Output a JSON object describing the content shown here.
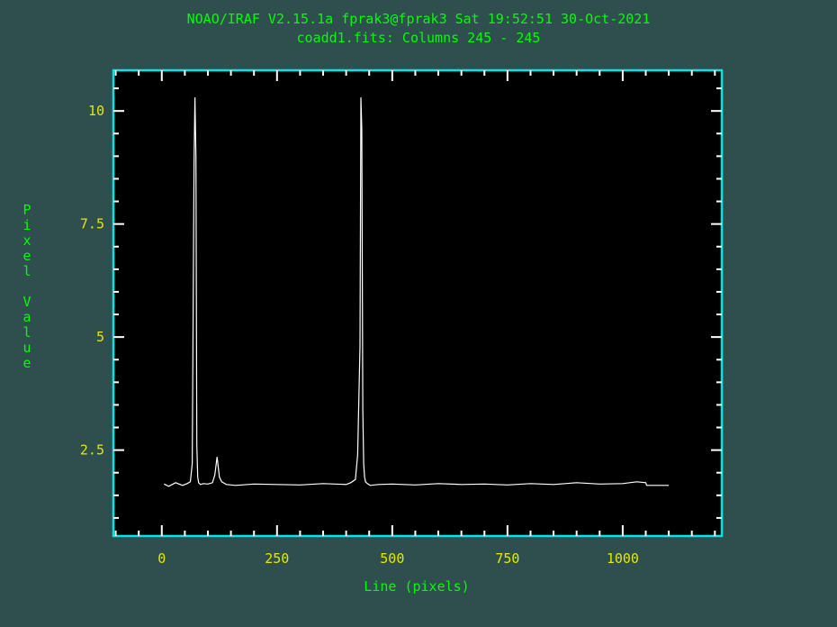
{
  "chart_data": {
    "type": "line",
    "title": "NOAO/IRAF V2.15.1a fprak3@fprak3 Sat 19:52:51 30-Oct-2021",
    "subtitle": "coadd1.fits: Columns 245 - 245",
    "xlabel": "Line (pixels)",
    "ylabel": "Pixel Value",
    "xlim": [
      -105,
      1215
    ],
    "ylim": [
      0.6,
      10.9
    ],
    "x_ticks": [
      0,
      250,
      500,
      750,
      1000
    ],
    "y_ticks": [
      2.5,
      5,
      7.5,
      10
    ],
    "grid": false,
    "series": [
      {
        "x": [
          5,
          15,
          30,
          45,
          55,
          62,
          66,
          70,
          72,
          74,
          76,
          78,
          80,
          84,
          90,
          100,
          110,
          115,
          120,
          125,
          130,
          140,
          160,
          200,
          250,
          300,
          350,
          400,
          410,
          420,
          425,
          430,
          432,
          434,
          436,
          438,
          440,
          442,
          446,
          452,
          470,
          500,
          550,
          600,
          650,
          700,
          750,
          800,
          850,
          900,
          950,
          1000,
          1030,
          1050,
          1052,
          1060,
          1080,
          1100
        ],
        "y": [
          1.75,
          1.7,
          1.78,
          1.72,
          1.76,
          1.8,
          2.2,
          8.8,
          10.3,
          9.0,
          2.6,
          1.9,
          1.78,
          1.74,
          1.76,
          1.75,
          1.78,
          1.95,
          2.35,
          1.9,
          1.8,
          1.74,
          1.72,
          1.75,
          1.74,
          1.73,
          1.76,
          1.74,
          1.78,
          1.85,
          2.4,
          4.8,
          10.3,
          9.6,
          3.4,
          2.2,
          1.9,
          1.8,
          1.76,
          1.72,
          1.74,
          1.75,
          1.73,
          1.76,
          1.74,
          1.75,
          1.73,
          1.76,
          1.74,
          1.78,
          1.75,
          1.76,
          1.8,
          1.78,
          1.72,
          1.72,
          1.72,
          1.72
        ]
      }
    ]
  }
}
